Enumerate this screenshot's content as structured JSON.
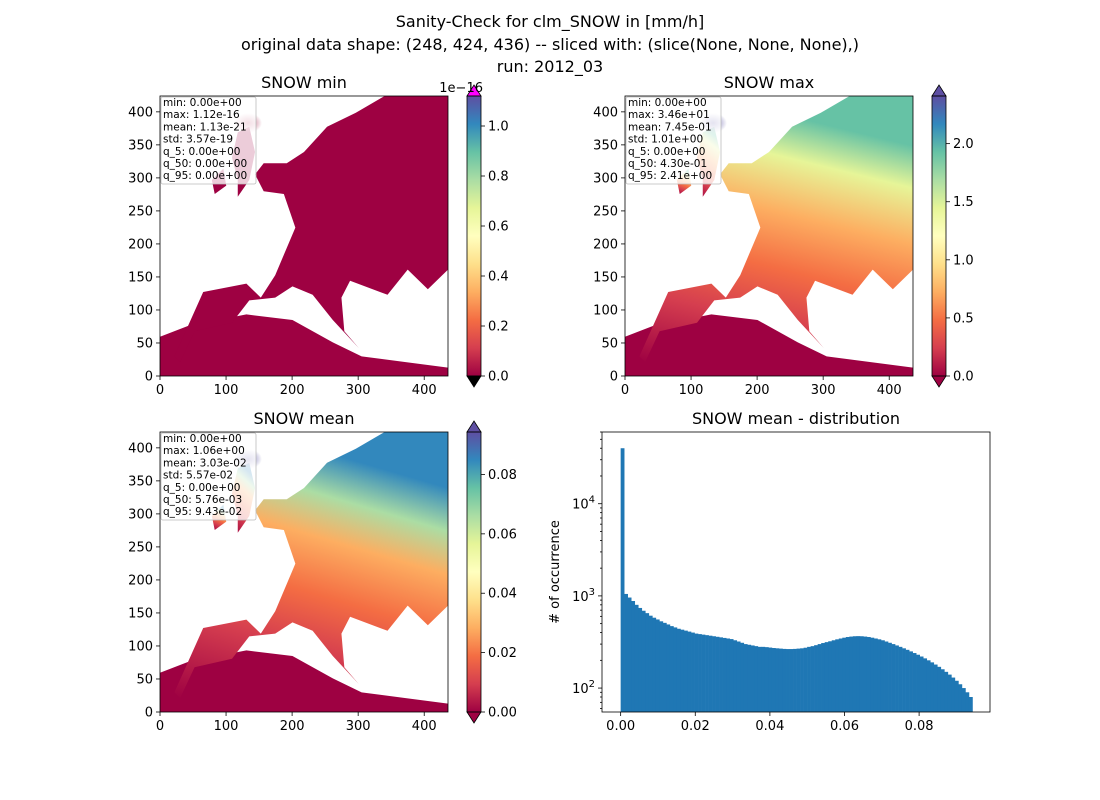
{
  "figure": {
    "title_lines": [
      "Sanity-Check for clm_SNOW in [mm/h]",
      "original data shape: (248, 424, 436) -- sliced with: (slice(None, None, None),)",
      "run: 2012_03"
    ]
  },
  "panels": {
    "min": {
      "title": "SNOW min",
      "stats": [
        "min: 0.00e+00",
        "max: 1.12e-16",
        "mean: 1.13e-21",
        "std: 3.57e-19",
        "q_5: 0.00e+00",
        "q_50: 0.00e+00",
        "q_95: 0.00e+00"
      ],
      "colorbar_ticks": [
        "0.0",
        "0.2",
        "0.4",
        "0.6",
        "0.8",
        "1.0"
      ],
      "colorbar_offset": "1e−16",
      "colorbar_range": [
        0,
        1.12
      ],
      "colorbar_extend_top_color": "#ff00ff"
    },
    "max": {
      "title": "SNOW max",
      "stats": [
        "min: 0.00e+00",
        "max: 3.46e+01",
        "mean: 7.45e-01",
        "std: 1.01e+00",
        "q_5: 0.00e+00",
        "q_50: 4.30e-01",
        "q_95: 2.41e+00"
      ],
      "colorbar_ticks": [
        "0.0",
        "0.5",
        "1.0",
        "1.5",
        "2.0"
      ],
      "colorbar_range": [
        0,
        2.41
      ]
    },
    "mean": {
      "title": "SNOW mean",
      "stats": [
        "min: 0.00e+00",
        "max: 1.06e+00",
        "mean: 3.03e-02",
        "std: 5.57e-02",
        "q_5: 0.00e+00",
        "q_50: 5.76e-03",
        "q_95: 9.43e-02"
      ],
      "colorbar_ticks": [
        "0.00",
        "0.02",
        "0.04",
        "0.06",
        "0.08"
      ],
      "colorbar_range": [
        0,
        0.0943
      ]
    },
    "hist": {
      "title": "SNOW mean - distribution",
      "ylabel": "# of occurrence"
    }
  },
  "map_axes": {
    "xticks": [
      "0",
      "100",
      "200",
      "300",
      "400"
    ],
    "yticks": [
      "0",
      "50",
      "100",
      "150",
      "200",
      "250",
      "300",
      "350",
      "400"
    ],
    "xlim": [
      0,
      436
    ],
    "ylim": [
      0,
      424
    ]
  },
  "colormap": "Spectral",
  "colors": {
    "bar": "#1f77b4",
    "map_low": "#9e0142"
  },
  "chart_data": {
    "type": "bar",
    "title": "SNOW mean - distribution",
    "xlabel": "",
    "ylabel": "# of occurrence",
    "yscale": "log",
    "xlim": [
      -0.005,
      0.099
    ],
    "ylim": [
      55,
      60000
    ],
    "xticks": [
      "0.00",
      "0.02",
      "0.04",
      "0.06",
      "0.08"
    ],
    "yticks": [
      "10^2",
      "10^3",
      "10^4"
    ],
    "bins": {
      "start": 0.0,
      "end": 0.0943,
      "count": 100
    },
    "values": [
      40000,
      1050,
      960,
      880,
      800,
      740,
      690,
      650,
      610,
      580,
      555,
      530,
      510,
      490,
      470,
      455,
      440,
      430,
      420,
      410,
      400,
      390,
      385,
      380,
      375,
      370,
      365,
      360,
      355,
      350,
      345,
      340,
      330,
      320,
      310,
      300,
      295,
      290,
      285,
      280,
      280,
      278,
      275,
      272,
      270,
      268,
      266,
      265,
      265,
      266,
      268,
      270,
      274,
      280,
      285,
      292,
      300,
      308,
      315,
      322,
      330,
      338,
      345,
      352,
      358,
      362,
      365,
      366,
      365,
      362,
      358,
      352,
      345,
      338,
      330,
      320,
      310,
      300,
      290,
      280,
      270,
      260,
      250,
      240,
      230,
      220,
      210,
      200,
      190,
      180,
      170,
      160,
      150,
      140,
      130,
      120,
      110,
      100,
      90,
      80
    ]
  }
}
